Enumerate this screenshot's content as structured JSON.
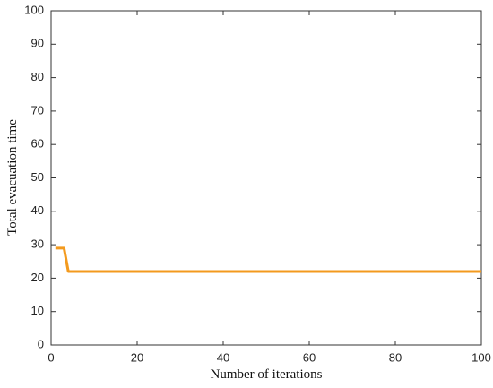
{
  "chart_data": {
    "type": "line",
    "x_label": "Number of iterations",
    "y_label": "Total evacuation time",
    "x": [
      1,
      3,
      4,
      100
    ],
    "series": [
      {
        "name": "Total evacuation time",
        "color": "#f39a1e",
        "values": [
          29,
          29,
          22,
          22
        ]
      }
    ],
    "xlim": [
      0,
      100
    ],
    "xticks": [
      0,
      20,
      40,
      60,
      80,
      100
    ],
    "ylim": [
      0,
      100
    ],
    "yticks": [
      0,
      10,
      20,
      30,
      40,
      50,
      60,
      70,
      80,
      90,
      100
    ],
    "grid": false
  }
}
